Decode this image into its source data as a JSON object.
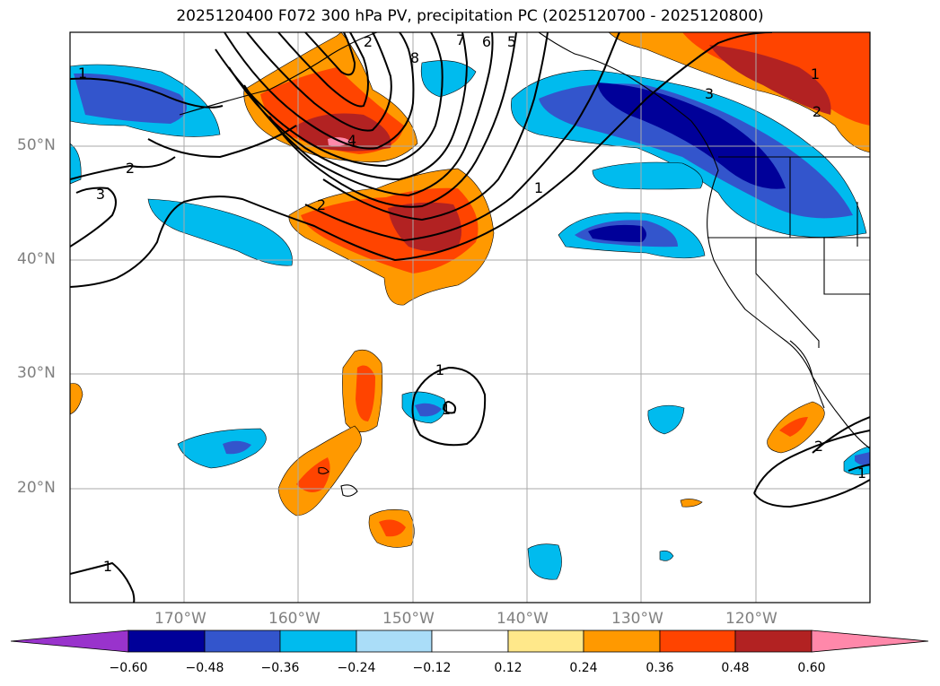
{
  "title": "2025120400 F072 300 hPa PV, precipitation PC (2025120700 - 2025120800)",
  "map": {
    "extent": {
      "lon_min": -180,
      "lon_max": -110,
      "lat_min": 10,
      "lat_max": 60
    },
    "lat_ticks": [
      "50°N",
      "40°N",
      "30°N",
      "20°N"
    ],
    "lon_ticks": [
      "170°W",
      "160°W",
      "150°W",
      "140°W",
      "130°W",
      "120°W"
    ],
    "contour_labels": [
      "1",
      "2",
      "3",
      "4",
      "5",
      "6",
      "7",
      "8",
      "1",
      "2",
      "1",
      "1",
      "2",
      "1",
      "2",
      "3",
      "1",
      "2",
      "1",
      "2",
      "1"
    ]
  },
  "colorbar": {
    "labels": [
      "−0.60",
      "−0.48",
      "−0.36",
      "−0.24",
      "−0.12",
      "0.12",
      "0.24",
      "0.36",
      "0.48",
      "0.60"
    ],
    "colors": [
      "#9933cc",
      "#000099",
      "#3355cc",
      "#00bbee",
      "#aaddf8",
      "#ffffff",
      "#ffe88a",
      "#ff9900",
      "#ff4400",
      "#b22222",
      "#ff88aa"
    ]
  }
}
